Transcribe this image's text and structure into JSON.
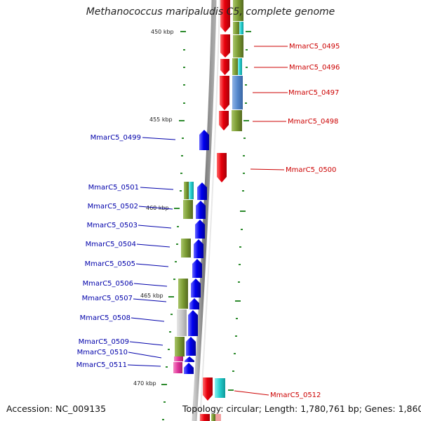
{
  "title": "Methanococcus maripaludis C5, complete genome",
  "footer": {
    "accession": "Accession: NC_009135",
    "topology": "Topology: circular; Length: 1,780,761 bp; Genes: 1,860"
  },
  "colors": {
    "forward": "#e0000a",
    "reverse": "#0000e8",
    "olive": "#7a9a32",
    "cyan": "#22cccc",
    "steel": "#5588cc",
    "grey": "#c8c8c8",
    "magenta": "#e0339a",
    "tick": "#2e8b2e",
    "axis": "#888888",
    "label_forward": "#cc0000",
    "label_reverse": "#0000aa"
  },
  "scale_ticks": [
    "450 kbp",
    "455 kbp",
    "460 kbp",
    "465 kbp",
    "470 kbp"
  ],
  "forward_genes": [
    "MmarC5_0495",
    "MmarC5_0496",
    "MmarC5_0497",
    "MmarC5_0498",
    "MmarC5_0500",
    "MmarC5_0512"
  ],
  "reverse_genes": [
    "MmarC5_0499",
    "MmarC5_0501",
    "MmarC5_0502",
    "MmarC5_0503",
    "MmarC5_0504",
    "MmarC5_0505",
    "MmarC5_0506",
    "MmarC5_0507",
    "MmarC5_0508",
    "MmarC5_0509",
    "MmarC5_0510",
    "MmarC5_0511"
  ]
}
